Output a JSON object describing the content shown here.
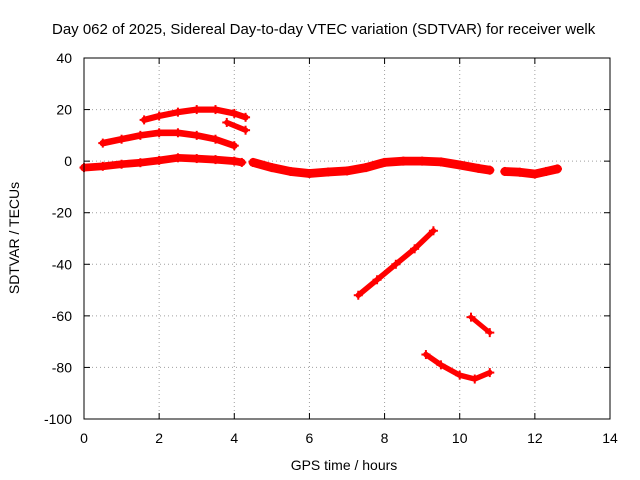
{
  "chart_data": {
    "type": "scatter",
    "title": "Day 062 of 2025, Sidereal Day-to-day VTEC variation (SDTVAR) for receiver welk",
    "xlabel": "GPS time / hours",
    "ylabel": "SDTVAR / TECUs",
    "xlim": [
      0,
      14
    ],
    "ylim": [
      -100,
      40
    ],
    "xticks": [
      0,
      2,
      4,
      6,
      8,
      10,
      12,
      14
    ],
    "xtick_labels": [
      "0",
      "2",
      "4",
      "6",
      "8",
      "10",
      "12",
      "14"
    ],
    "yticks": [
      -100,
      -80,
      -60,
      -40,
      -20,
      0,
      20,
      40
    ],
    "ytick_labels": [
      "-100",
      "-80",
      "-60",
      "-40",
      "-20",
      "0",
      "20",
      "40"
    ],
    "grid": true,
    "marker": "plus",
    "color": "#ff0000",
    "series": [
      {
        "name": "main-baseline",
        "thickness": 3.5,
        "points": [
          [
            0,
            -2.5
          ],
          [
            0.5,
            -2
          ],
          [
            1,
            -1.2
          ],
          [
            1.5,
            -0.6
          ],
          [
            2,
            0.3
          ],
          [
            2.5,
            1.3
          ],
          [
            3,
            1
          ],
          [
            3.5,
            0.6
          ],
          [
            4,
            0
          ],
          [
            4.2,
            -0.5
          ]
        ]
      },
      {
        "name": "segment-4.5-9",
        "thickness": 4,
        "points": [
          [
            4.5,
            -0.5
          ],
          [
            5,
            -2.5
          ],
          [
            5.5,
            -4
          ],
          [
            6,
            -4.8
          ],
          [
            6.5,
            -4.2
          ],
          [
            7,
            -3.8
          ],
          [
            7.5,
            -2.5
          ],
          [
            8,
            -0.5
          ],
          [
            8.5,
            0
          ],
          [
            9,
            0
          ],
          [
            9.5,
            -0.3
          ],
          [
            10,
            -1.5
          ],
          [
            10.5,
            -2.8
          ],
          [
            10.8,
            -3.5
          ]
        ]
      },
      {
        "name": "segment-11-12.5",
        "thickness": 4,
        "points": [
          [
            11.2,
            -4
          ],
          [
            11.6,
            -4.3
          ],
          [
            12,
            -5
          ],
          [
            12.3,
            -4
          ],
          [
            12.6,
            -3
          ]
        ]
      },
      {
        "name": "arc-upper",
        "thickness": 2.8,
        "points": [
          [
            1.6,
            16
          ],
          [
            2,
            17.5
          ],
          [
            2.5,
            19
          ],
          [
            3,
            20
          ],
          [
            3.5,
            20
          ],
          [
            4,
            18.5
          ],
          [
            4.3,
            17
          ]
        ]
      },
      {
        "name": "arc-middle",
        "thickness": 3,
        "points": [
          [
            0.5,
            7
          ],
          [
            1,
            8.5
          ],
          [
            1.5,
            10
          ],
          [
            2,
            11
          ],
          [
            2.5,
            11
          ],
          [
            3,
            10
          ],
          [
            3.5,
            8.5
          ],
          [
            4,
            6
          ]
        ]
      },
      {
        "name": "short-dash",
        "thickness": 2.5,
        "points": [
          [
            3.8,
            15
          ],
          [
            4.3,
            12
          ]
        ]
      },
      {
        "name": "diagonal",
        "thickness": 2.5,
        "points": [
          [
            7.3,
            -52
          ],
          [
            7.8,
            -46
          ],
          [
            8.3,
            -40
          ],
          [
            8.8,
            -34
          ],
          [
            9.3,
            -27
          ]
        ]
      },
      {
        "name": "bowl",
        "thickness": 2.5,
        "points": [
          [
            9.1,
            -75
          ],
          [
            9.5,
            -79
          ],
          [
            10,
            -83
          ],
          [
            10.4,
            -84.5
          ],
          [
            10.8,
            -82
          ]
        ]
      },
      {
        "name": "small-diagonal",
        "thickness": 2.2,
        "points": [
          [
            10.3,
            -60.5
          ],
          [
            10.8,
            -66.5
          ]
        ]
      }
    ]
  }
}
